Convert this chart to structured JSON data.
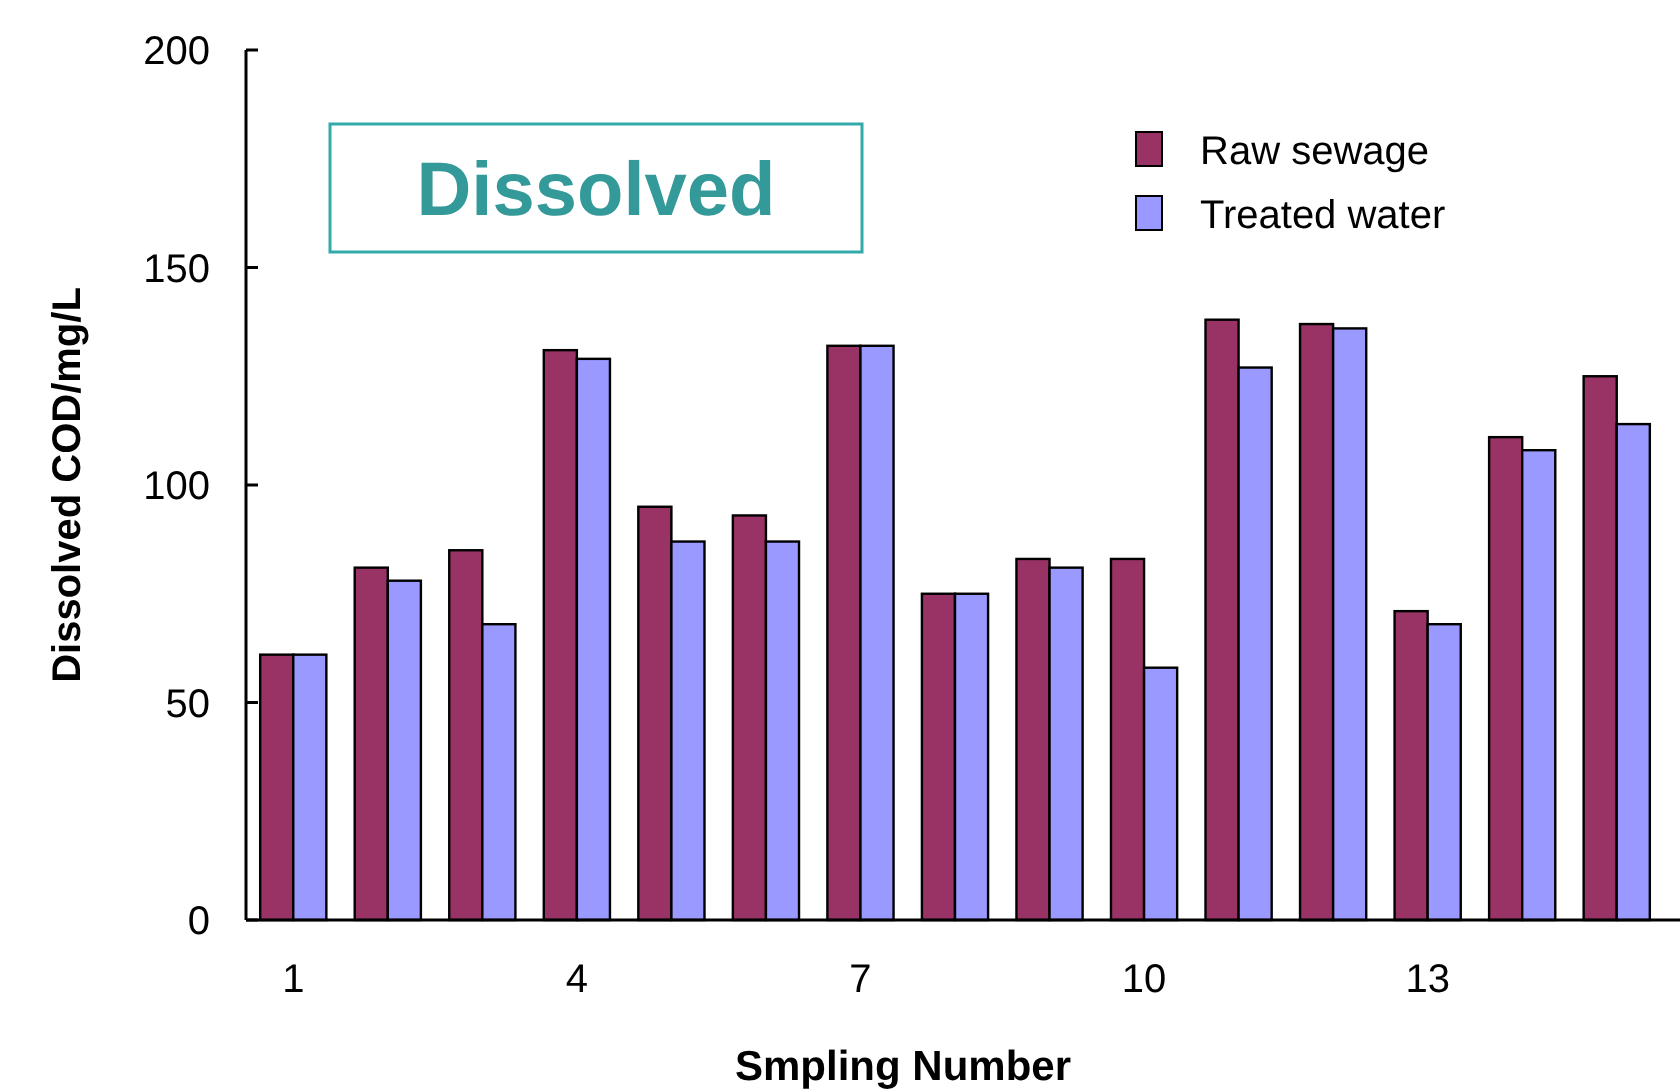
{
  "chart_data": {
    "type": "bar",
    "title": "Dissolved",
    "xlabel": "Smpling Number",
    "ylabel": "Dissolved COD/mg/L",
    "categories": [
      "1",
      null,
      null,
      "4",
      null,
      null,
      "7",
      null,
      null,
      "10",
      null,
      null,
      "13",
      null,
      null
    ],
    "series": [
      {
        "name": "Raw sewage",
        "color": "#993366",
        "values": [
          61,
          81,
          85,
          131,
          95,
          93,
          132,
          75,
          83,
          83,
          138,
          137,
          71,
          111,
          125
        ]
      },
      {
        "name": "Treated water",
        "color": "#9999ff",
        "values": [
          61,
          78,
          68,
          129,
          87,
          87,
          132,
          75,
          81,
          58,
          127,
          136,
          68,
          108,
          114
        ]
      }
    ],
    "ylim": [
      0,
      200
    ],
    "yticks": [
      0,
      50,
      100,
      150,
      200
    ],
    "grid": false,
    "legend": "top right"
  }
}
